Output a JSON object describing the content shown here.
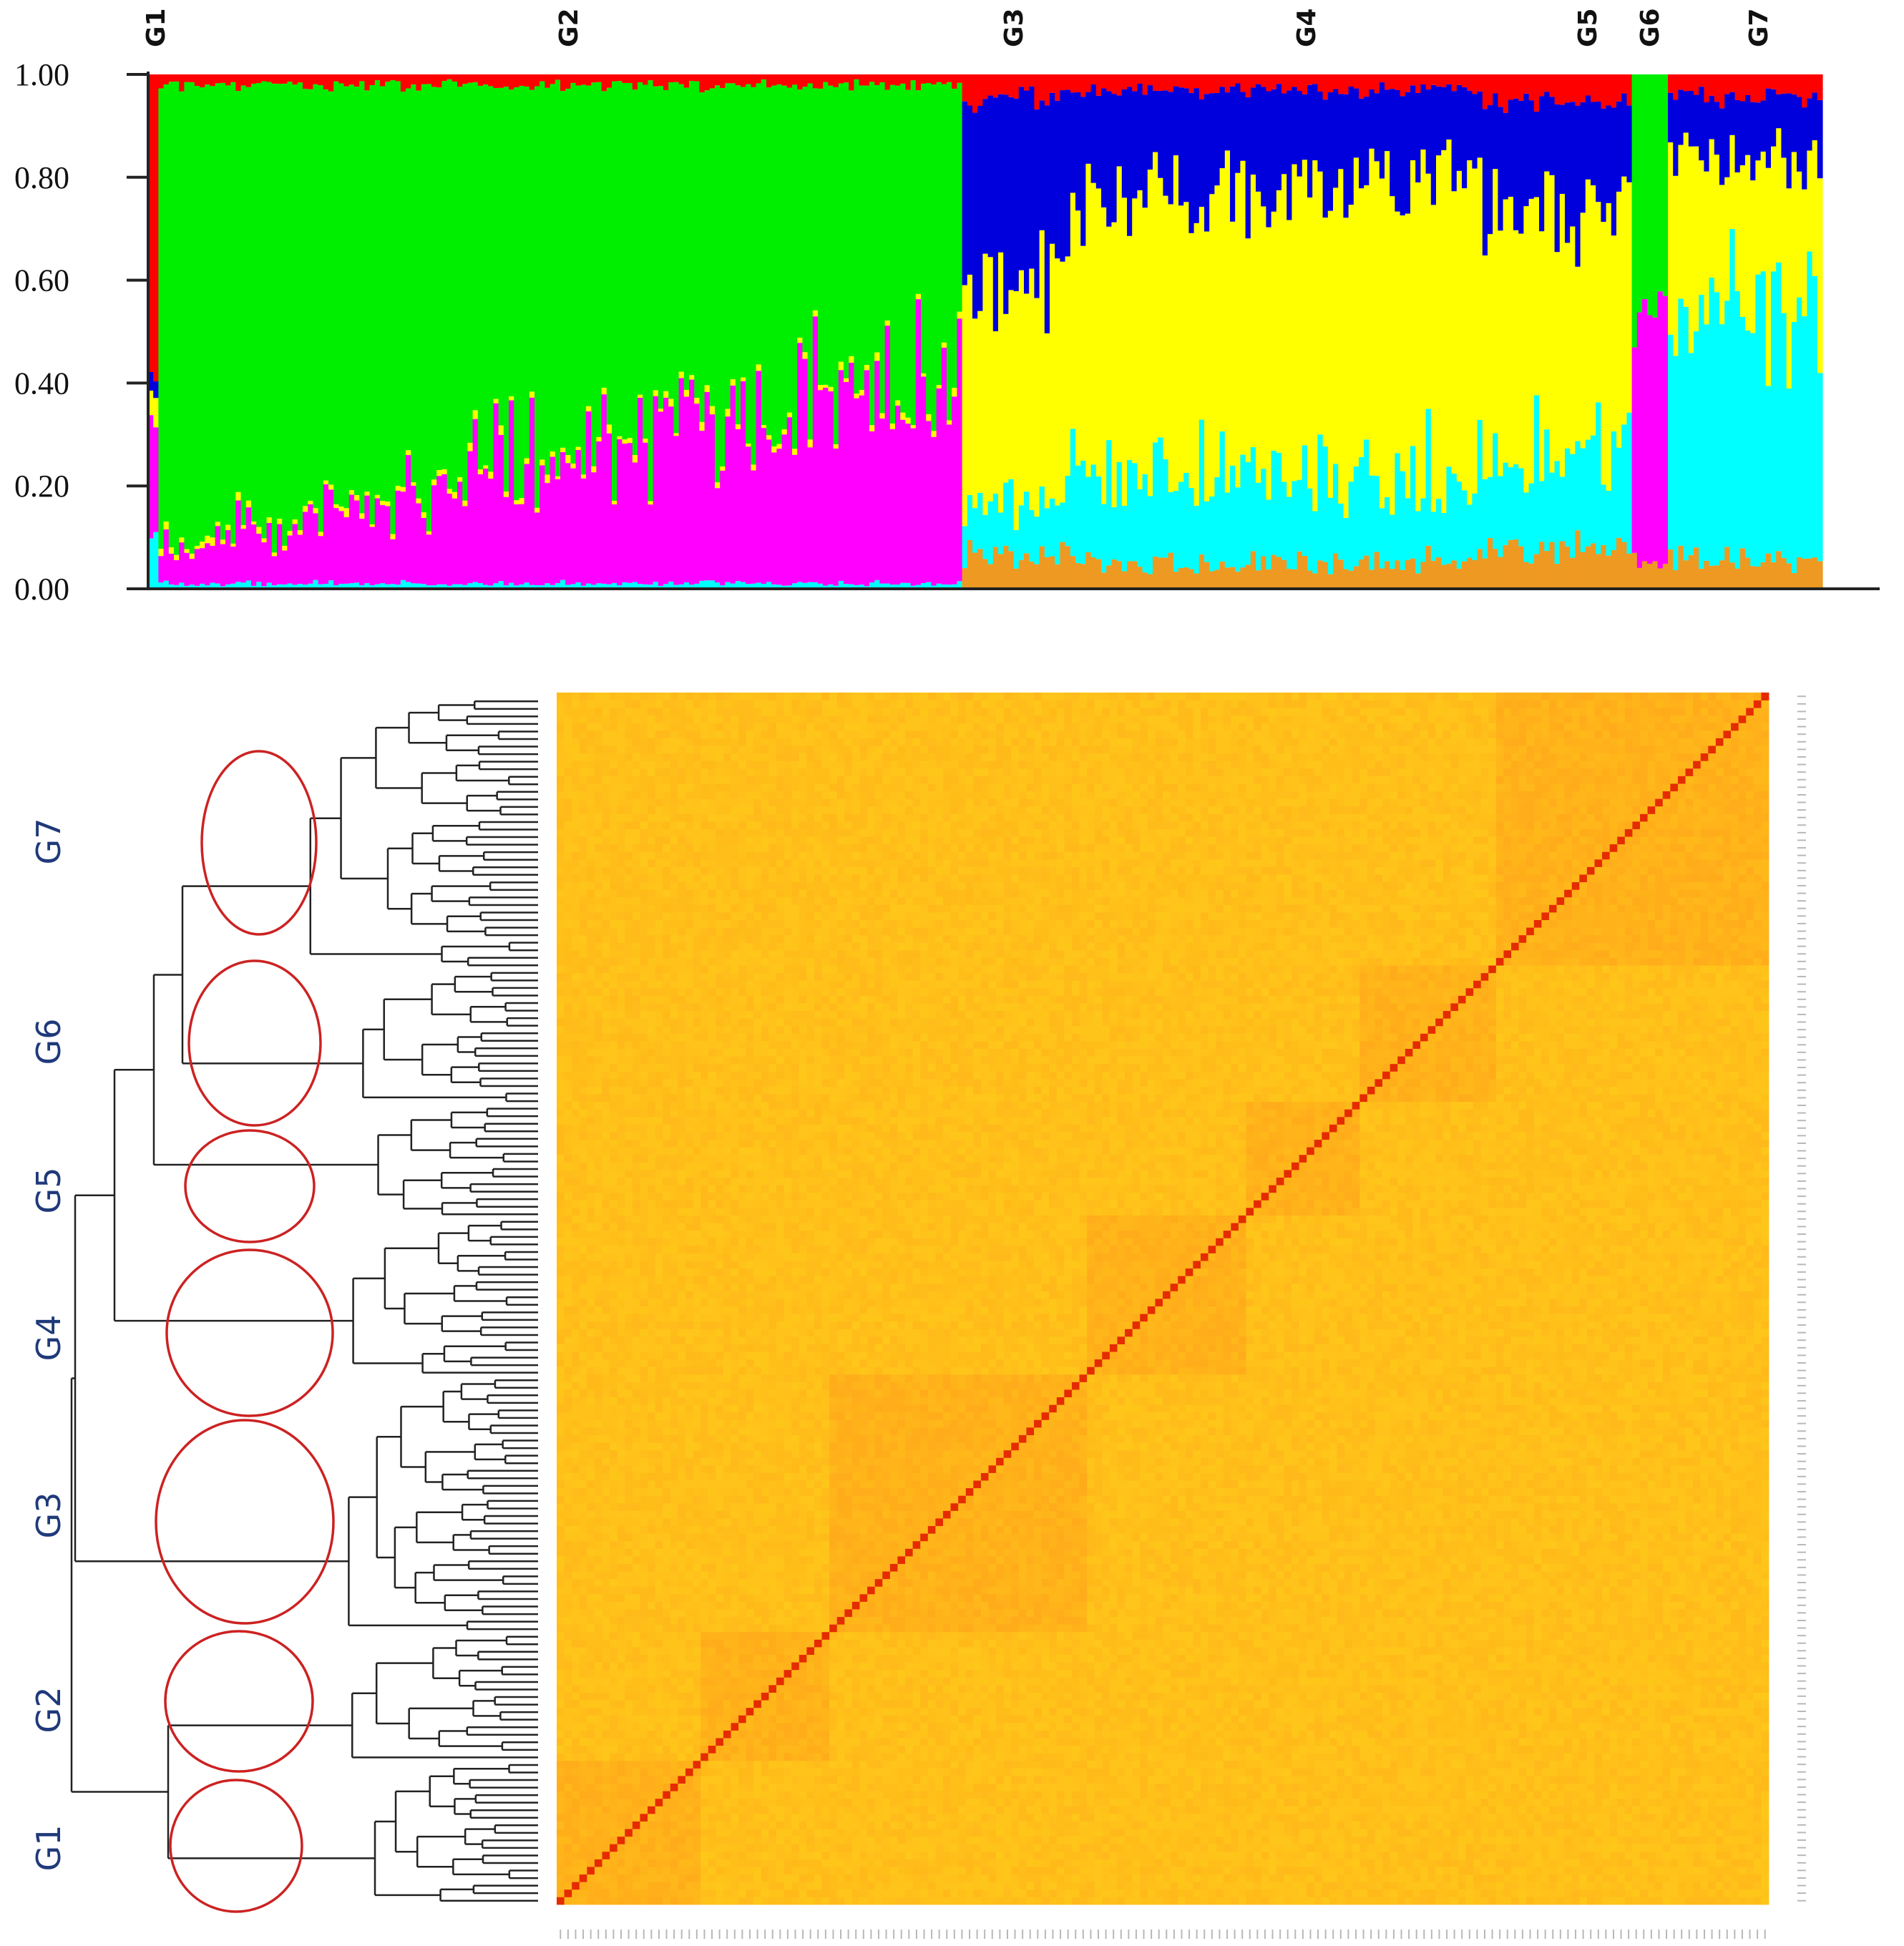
{
  "colors": {
    "red": "#ff0000",
    "green": "#00ee00",
    "blue": "#0000dd",
    "yellow": "#ffff00",
    "magenta": "#ff00ff",
    "cyan": "#00ffff",
    "orange": "#ee9922",
    "heat_low": "#ffd21a",
    "heat_mid": "#ff9a1a",
    "heat_high": "#e52b00",
    "dendrogram": "#222222",
    "circle": "#cc2222",
    "group_label": "#1f3a7a"
  },
  "chart_data": [
    {
      "type": "bar",
      "subtype": "stacked-ancestry",
      "ylim": [
        0,
        1
      ],
      "yticks": [
        "0.00",
        "0.20",
        "0.40",
        "0.60",
        "0.80",
        "1.00"
      ],
      "xlabel": "",
      "ylabel": "",
      "title": "",
      "components": [
        "red",
        "green",
        "blue",
        "yellow",
        "magenta",
        "cyan",
        "orange"
      ],
      "groups": [
        {
          "label": "G1",
          "n_individuals": 2,
          "profile": {
            "red": 0.6,
            "blue": 0.05,
            "yellow": 0.05,
            "magenta": 0.2,
            "cyan": 0.1
          }
        },
        {
          "label": "G2",
          "n_individuals": 156,
          "profile": {
            "red": 0.02,
            "green": [
              0.9,
              0.53
            ],
            "magenta": [
              0.06,
              0.43
            ],
            "cyan": 0.01,
            "yellow": 0.01
          }
        },
        {
          "label": "G3",
          "n_individuals": 20,
          "profile": {
            "red": 0.04,
            "blue": 0.35,
            "yellow": 0.4,
            "cyan": 0.1,
            "orange": 0.06
          }
        },
        {
          "label": "G4",
          "n_individuals": 80,
          "profile": {
            "red": 0.03,
            "blue": 0.2,
            "yellow": 0.55,
            "cyan": 0.17,
            "orange": 0.05
          }
        },
        {
          "label": "G5",
          "n_individuals": 30,
          "profile": {
            "red": 0.05,
            "blue": 0.22,
            "yellow": 0.45,
            "cyan": 0.2,
            "orange": 0.08
          }
        },
        {
          "label": "G6",
          "n_individuals": 7,
          "profile": {
            "green": 0.45,
            "magenta": 0.5,
            "orange": 0.05
          }
        },
        {
          "label": "G7",
          "n_individuals": 30,
          "profile": {
            "red": 0.04,
            "blue": 0.12,
            "yellow": 0.3,
            "cyan": 0.48,
            "orange": 0.06
          }
        }
      ]
    },
    {
      "type": "heatmap",
      "subtype": "kinship-matrix-with-dendrogram",
      "title": "",
      "clusters": [
        {
          "label": "G1",
          "start": 0.0,
          "end": 0.12
        },
        {
          "label": "G2",
          "start": 0.12,
          "end": 0.225
        },
        {
          "label": "G3",
          "start": 0.225,
          "end": 0.435
        },
        {
          "label": "G4",
          "start": 0.435,
          "end": 0.57
        },
        {
          "label": "G5",
          "start": 0.57,
          "end": 0.66
        },
        {
          "label": "G6",
          "start": 0.66,
          "end": 0.775
        },
        {
          "label": "G7",
          "start": 0.775,
          "end": 1.0
        }
      ],
      "n_individuals": 160,
      "diagonal_value": 1.0,
      "color_scale": [
        "heat_low",
        "heat_mid",
        "heat_high"
      ]
    }
  ]
}
